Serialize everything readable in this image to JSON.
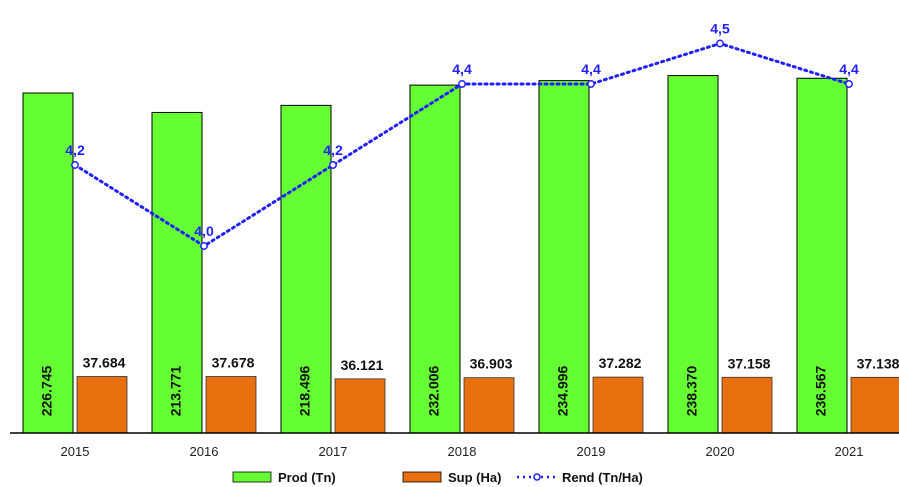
{
  "chart_data": {
    "type": "bar",
    "categories": [
      "2015",
      "2016",
      "2017",
      "2018",
      "2019",
      "2020",
      "2021"
    ],
    "series": [
      {
        "name": "Prod (Tn)",
        "type": "bar",
        "color": "#66ff33",
        "values": [
          226745,
          213771,
          218496,
          232006,
          234996,
          238370,
          236567
        ],
        "labels": [
          "226.745",
          "213.771",
          "218.496",
          "232.006",
          "234.996",
          "238.370",
          "236.567"
        ]
      },
      {
        "name": "Sup (Ha)",
        "type": "bar",
        "color": "#e8700f",
        "values": [
          37684,
          37678,
          36121,
          36903,
          37282,
          37158,
          37138
        ],
        "labels": [
          "37.684",
          "37.678",
          "36.121",
          "36.903",
          "37.282",
          "37.158",
          "37.138"
        ]
      },
      {
        "name": "Rend (Tn/Ha)",
        "type": "line",
        "color": "#1f1fff",
        "values": [
          4.2,
          4.0,
          4.2,
          4.4,
          4.4,
          4.5,
          4.4
        ],
        "labels": [
          "4,2",
          "4,0",
          "4,2",
          "4,4",
          "4,4",
          "4,5",
          "4,4"
        ]
      }
    ],
    "legend_position": "bottom",
    "grid": false
  }
}
